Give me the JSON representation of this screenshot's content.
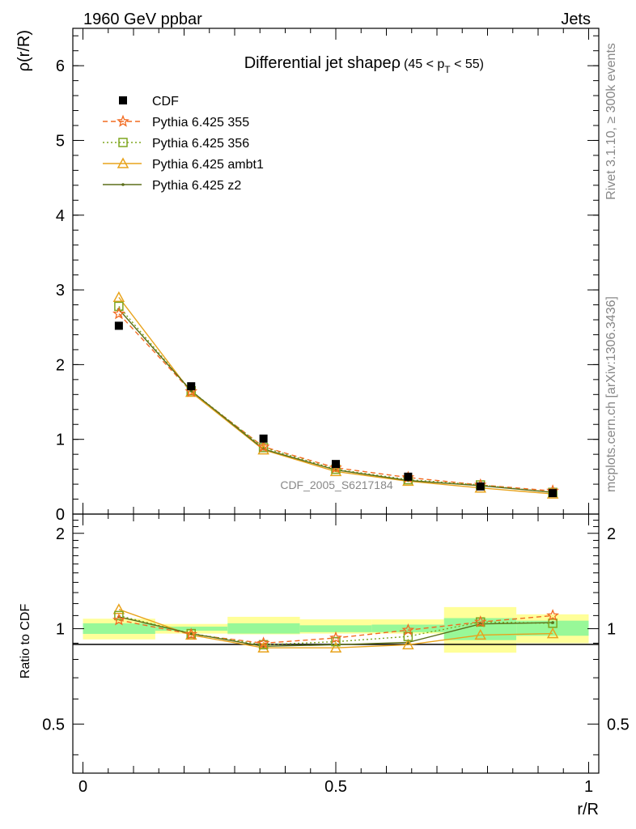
{
  "header": {
    "left": "1960 GeV ppbar",
    "right": "Jets"
  },
  "side_labels": {
    "rivet": "Rivet 3.1.10, ≥ 300k events",
    "mcplots": "mcplots.cern.ch [arXiv:1306.3436]"
  },
  "colors": {
    "cdf": "#000000",
    "p355": "#f26b21",
    "p356": "#7fa51f",
    "ambt1": "#e8a31c",
    "z2": "#5b6e1a",
    "band_inner": "#98f898",
    "band_outer": "#ffff99"
  },
  "chart_data": [
    {
      "type": "line",
      "panel": "main",
      "title": "Differential jet shapeρ",
      "title_suffix": "(45 < p",
      "title_sub": "T",
      "title_end": " < 55)",
      "ylabel": "ρ(r/R)",
      "xlim": [
        -0.02,
        1.02
      ],
      "ylim": [
        0,
        6.5
      ],
      "y_ticks": [
        0,
        1,
        2,
        3,
        4,
        5,
        6
      ],
      "y_tick_labels": [
        "0",
        "1",
        "2",
        "3",
        "4",
        "5",
        "6"
      ],
      "watermark": "CDF_2005_S6217184",
      "legend_position": "top-left",
      "x": [
        0.071,
        0.214,
        0.357,
        0.5,
        0.643,
        0.786,
        0.929
      ],
      "series": [
        {
          "name": "CDF",
          "marker": "square",
          "values": [
            2.52,
            1.71,
            1.01,
            0.67,
            0.5,
            0.37,
            0.28
          ]
        },
        {
          "name": "Pythia 6.425 355",
          "marker": "star",
          "values": [
            2.68,
            1.64,
            0.9,
            0.62,
            0.49,
            0.39,
            0.31
          ]
        },
        {
          "name": "Pythia 6.425 356",
          "marker": "open-square",
          "values": [
            2.78,
            1.65,
            0.89,
            0.6,
            0.46,
            0.39,
            0.29
          ]
        },
        {
          "name": "Pythia 6.425 ambt1",
          "marker": "triangle",
          "values": [
            2.9,
            1.63,
            0.86,
            0.57,
            0.44,
            0.35,
            0.27
          ]
        },
        {
          "name": "Pythia 6.425 z2",
          "marker": "dot",
          "values": [
            2.74,
            1.65,
            0.87,
            0.59,
            0.45,
            0.38,
            0.29
          ]
        }
      ]
    },
    {
      "type": "line",
      "panel": "ratio",
      "ylabel": "Ratio to CDF",
      "xlabel": "r/R",
      "xlim": [
        -0.02,
        1.02
      ],
      "ylim": [
        0.35,
        2.3
      ],
      "y_ticks": [
        0.5,
        1,
        2
      ],
      "y_tick_labels": [
        "0.5",
        "1",
        "2"
      ],
      "x_ticks": [
        0,
        0.5,
        1
      ],
      "x_tick_labels": [
        "0",
        "0.5",
        "1"
      ],
      "bins": [
        [
          0.0,
          0.143
        ],
        [
          0.143,
          0.286
        ],
        [
          0.286,
          0.429
        ],
        [
          0.429,
          0.571
        ],
        [
          0.571,
          0.714
        ],
        [
          0.714,
          0.857
        ],
        [
          0.857,
          1.0
        ]
      ],
      "band_inner": [
        [
          0.963,
          1.04
        ],
        [
          0.985,
          1.015
        ],
        [
          0.965,
          1.04
        ],
        [
          0.975,
          1.025
        ],
        [
          0.975,
          1.03
        ],
        [
          0.92,
          1.08
        ],
        [
          0.95,
          1.06
        ]
      ],
      "band_outer": [
        [
          0.925,
          1.075
        ],
        [
          0.965,
          1.035
        ],
        [
          0.96,
          1.09
        ],
        [
          0.965,
          1.07
        ],
        [
          0.965,
          1.07
        ],
        [
          0.84,
          1.17
        ],
        [
          0.9,
          1.11
        ]
      ],
      "x": [
        0.071,
        0.214,
        0.357,
        0.5,
        0.643,
        0.786,
        0.929
      ],
      "series": [
        {
          "name": "Pythia 6.425 355",
          "marker": "star",
          "values": [
            1.065,
            0.96,
            0.9,
            0.935,
            0.99,
            1.05,
            1.1
          ]
        },
        {
          "name": "Pythia 6.425 356",
          "marker": "open-square",
          "values": [
            1.1,
            0.965,
            0.89,
            0.91,
            0.945,
            1.05,
            1.04
          ]
        },
        {
          "name": "Pythia 6.425 ambt1",
          "marker": "triangle",
          "values": [
            1.15,
            0.955,
            0.87,
            0.87,
            0.89,
            0.955,
            0.965
          ]
        },
        {
          "name": "Pythia 6.425 z2",
          "marker": "dot",
          "values": [
            1.09,
            0.965,
            0.88,
            0.89,
            0.905,
            1.035,
            1.045
          ]
        }
      ]
    }
  ]
}
